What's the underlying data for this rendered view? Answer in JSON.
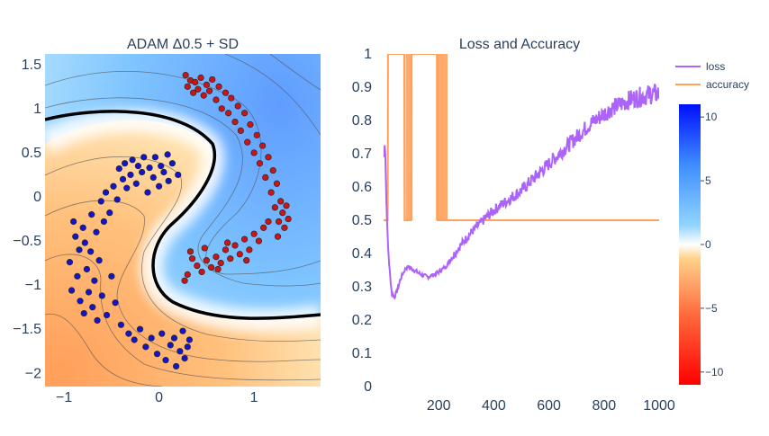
{
  "chart_data": [
    {
      "type": "scatter",
      "title": "ADAM Δ0.5 + SD",
      "xlim": [
        -1.2,
        1.7
      ],
      "ylim": [
        -2.15,
        1.62
      ],
      "x_ticks": [
        -1,
        0,
        1
      ],
      "x_tick_labels": [
        "−1",
        "0",
        "1"
      ],
      "y_ticks": [
        1.5,
        1,
        0.5,
        0,
        -0.5,
        -1,
        -1.5,
        -2
      ],
      "y_tick_labels": [
        "1.5",
        "1",
        "0.5",
        "0",
        "−0.5",
        "−1",
        "−1.5",
        "−2"
      ],
      "background": "decision-function contour heatmap (blue positive, orange/red negative, white near 0) with bold black decision boundary",
      "grid": false,
      "series": [
        {
          "class": "blue",
          "color": "#1515c8",
          "points": [
            [
              -0.94,
              -0.74
            ],
            [
              -0.92,
              -1.06
            ],
            [
              -0.9,
              -0.28
            ],
            [
              -0.88,
              -0.45
            ],
            [
              -0.86,
              -0.9
            ],
            [
              -0.84,
              -0.6
            ],
            [
              -0.83,
              -1.18
            ],
            [
              -0.8,
              -0.35
            ],
            [
              -0.79,
              -1.32
            ],
            [
              -0.78,
              -0.52
            ],
            [
              -0.76,
              -0.82
            ],
            [
              -0.74,
              -1.08
            ],
            [
              -0.72,
              -0.62
            ],
            [
              -0.71,
              -0.2
            ],
            [
              -0.7,
              -1.25
            ],
            [
              -0.68,
              -0.95
            ],
            [
              -0.66,
              -0.4
            ],
            [
              -0.65,
              -1.4
            ],
            [
              -0.63,
              -0.72
            ],
            [
              -0.61,
              -0.05
            ],
            [
              -0.6,
              -1.12
            ],
            [
              -0.58,
              -0.28
            ],
            [
              -0.56,
              0.05
            ],
            [
              -0.55,
              -1.34
            ],
            [
              -0.52,
              -0.18
            ],
            [
              -0.5,
              -0.9
            ],
            [
              -0.48,
              0.12
            ],
            [
              -0.46,
              -1.2
            ],
            [
              -0.44,
              -0.03
            ],
            [
              -0.42,
              0.32
            ],
            [
              -0.4,
              -1.45
            ],
            [
              -0.38,
              0.2
            ],
            [
              -0.36,
              0.38
            ],
            [
              -0.34,
              0.1
            ],
            [
              -0.32,
              -1.55
            ],
            [
              -0.3,
              0.25
            ],
            [
              -0.28,
              0.42
            ],
            [
              -0.26,
              -1.62
            ],
            [
              -0.24,
              0.15
            ],
            [
              -0.22,
              0.35
            ],
            [
              -0.2,
              -1.5
            ],
            [
              -0.18,
              0.28
            ],
            [
              -0.16,
              0.45
            ],
            [
              -0.14,
              -1.7
            ],
            [
              -0.12,
              0.05
            ],
            [
              -0.1,
              0.33
            ],
            [
              -0.08,
              -1.6
            ],
            [
              -0.06,
              0.22
            ],
            [
              -0.04,
              0.45
            ],
            [
              -0.02,
              -1.78
            ],
            [
              0.0,
              0.12
            ],
            [
              0.02,
              0.35
            ],
            [
              0.03,
              -1.55
            ],
            [
              0.05,
              0.28
            ],
            [
              0.07,
              -1.85
            ],
            [
              0.09,
              0.48
            ],
            [
              0.1,
              0.18
            ],
            [
              0.12,
              -1.68
            ],
            [
              0.14,
              0.38
            ],
            [
              0.16,
              -1.6
            ],
            [
              0.18,
              -1.92
            ],
            [
              0.2,
              0.25
            ],
            [
              0.22,
              -1.75
            ],
            [
              0.25,
              -1.52
            ],
            [
              0.27,
              -1.83
            ],
            [
              0.3,
              -1.7
            ],
            [
              0.32,
              -1.62
            ]
          ]
        },
        {
          "class": "red",
          "color": "#c81515",
          "points": [
            [
              0.28,
              1.38
            ],
            [
              0.3,
              1.25
            ],
            [
              0.33,
              1.32
            ],
            [
              0.36,
              1.18
            ],
            [
              0.38,
              1.3
            ],
            [
              0.41,
              1.22
            ],
            [
              0.44,
              1.35
            ],
            [
              0.47,
              1.15
            ],
            [
              0.5,
              1.27
            ],
            [
              0.53,
              1.2
            ],
            [
              0.56,
              1.33
            ],
            [
              0.6,
              1.1
            ],
            [
              0.63,
              1.25
            ],
            [
              0.66,
              1.0
            ],
            [
              0.7,
              1.18
            ],
            [
              0.73,
              0.95
            ],
            [
              0.76,
              1.12
            ],
            [
              0.8,
              0.85
            ],
            [
              0.83,
              1.03
            ],
            [
              0.86,
              0.75
            ],
            [
              0.9,
              0.95
            ],
            [
              0.93,
              0.62
            ],
            [
              0.96,
              0.82
            ],
            [
              1.0,
              0.5
            ],
            [
              1.03,
              0.7
            ],
            [
              1.06,
              0.38
            ],
            [
              1.09,
              0.58
            ],
            [
              1.12,
              0.22
            ],
            [
              1.15,
              0.45
            ],
            [
              1.18,
              0.05
            ],
            [
              1.2,
              0.3
            ],
            [
              1.22,
              -0.12
            ],
            [
              1.24,
              0.15
            ],
            [
              1.26,
              -0.28
            ],
            [
              1.28,
              -0.05
            ],
            [
              1.3,
              -0.18
            ],
            [
              1.32,
              -0.35
            ],
            [
              1.34,
              -0.1
            ],
            [
              1.36,
              -0.25
            ],
            [
              1.1,
              -0.35
            ],
            [
              1.05,
              -0.5
            ],
            [
              1.0,
              -0.42
            ],
            [
              0.95,
              -0.6
            ],
            [
              0.9,
              -0.48
            ],
            [
              0.85,
              -0.65
            ],
            [
              0.8,
              -0.55
            ],
            [
              0.75,
              -0.7
            ],
            [
              0.7,
              -0.6
            ],
            [
              0.65,
              -0.75
            ],
            [
              0.6,
              -0.68
            ],
            [
              0.55,
              -0.8
            ],
            [
              0.5,
              -0.72
            ],
            [
              0.45,
              -0.85
            ],
            [
              0.4,
              -0.78
            ],
            [
              0.35,
              -0.7
            ],
            [
              0.3,
              -0.88
            ],
            [
              0.27,
              -0.95
            ],
            [
              0.33,
              -0.62
            ],
            [
              0.48,
              -0.58
            ],
            [
              0.62,
              -0.82
            ],
            [
              0.72,
              -0.52
            ],
            [
              0.92,
              -0.72
            ],
            [
              1.15,
              -0.28
            ],
            [
              1.25,
              -0.45
            ]
          ]
        }
      ],
      "colorbar": {
        "ticks": [
          10,
          5,
          0,
          -5,
          -10
        ],
        "tick_labels": [
          "10",
          "5",
          "0",
          "−5",
          "−10"
        ],
        "range": [
          -11,
          11
        ],
        "colors": [
          "#ff0000",
          "#ff6a3d",
          "#ffd28a",
          "#ffffff",
          "#90d4ff",
          "#3f8fff",
          "#0010ff"
        ]
      }
    },
    {
      "type": "line",
      "title": "Loss and Accuracy",
      "xlim": [
        0,
        1000
      ],
      "ylim": [
        0,
        1
      ],
      "x_ticks": [
        200,
        400,
        600,
        800,
        1000
      ],
      "y_ticks": [
        0,
        0.1,
        0.2,
        0.3,
        0.4,
        0.5,
        0.6,
        0.7,
        0.8,
        0.9,
        1
      ],
      "y_tick_labels": [
        "0",
        "0.1",
        "0.2",
        "0.3",
        "0.4",
        "0.5",
        "0.6",
        "0.7",
        "0.8",
        "0.9",
        "1"
      ],
      "grid": false,
      "legend_position": "top-right",
      "series": [
        {
          "name": "loss",
          "color": "#ab63fa",
          "x": [
            0,
            5,
            10,
            15,
            20,
            25,
            30,
            40,
            50,
            60,
            70,
            80,
            90,
            100,
            120,
            140,
            160,
            180,
            200,
            225,
            250,
            275,
            300,
            325,
            350,
            375,
            400,
            425,
            450,
            475,
            500,
            525,
            550,
            575,
            600,
            625,
            650,
            675,
            700,
            725,
            750,
            775,
            800,
            825,
            850,
            875,
            900,
            925,
            950,
            975,
            1000
          ],
          "y": [
            0.69,
            0.74,
            0.56,
            0.44,
            0.37,
            0.32,
            0.28,
            0.27,
            0.29,
            0.32,
            0.34,
            0.355,
            0.36,
            0.355,
            0.345,
            0.335,
            0.33,
            0.335,
            0.345,
            0.36,
            0.39,
            0.42,
            0.445,
            0.47,
            0.49,
            0.51,
            0.53,
            0.545,
            0.56,
            0.575,
            0.59,
            0.61,
            0.63,
            0.65,
            0.67,
            0.69,
            0.71,
            0.73,
            0.75,
            0.77,
            0.79,
            0.805,
            0.82,
            0.835,
            0.845,
            0.855,
            0.865,
            0.87,
            0.875,
            0.88,
            0.88
          ]
        },
        {
          "name": "accuracy",
          "color": "#ffa15a",
          "x": [
            0,
            15,
            16,
            75,
            76,
            100,
            101,
            195,
            196,
            230,
            231,
            1000
          ],
          "y": [
            0.5,
            0.5,
            1,
            1,
            0.5,
            0.5,
            1,
            1,
            0.5,
            0.5,
            0.5,
            0.5
          ],
          "oscillation_bands": [
            [
              80,
              105
            ],
            [
              190,
              232
            ]
          ]
        }
      ]
    }
  ]
}
